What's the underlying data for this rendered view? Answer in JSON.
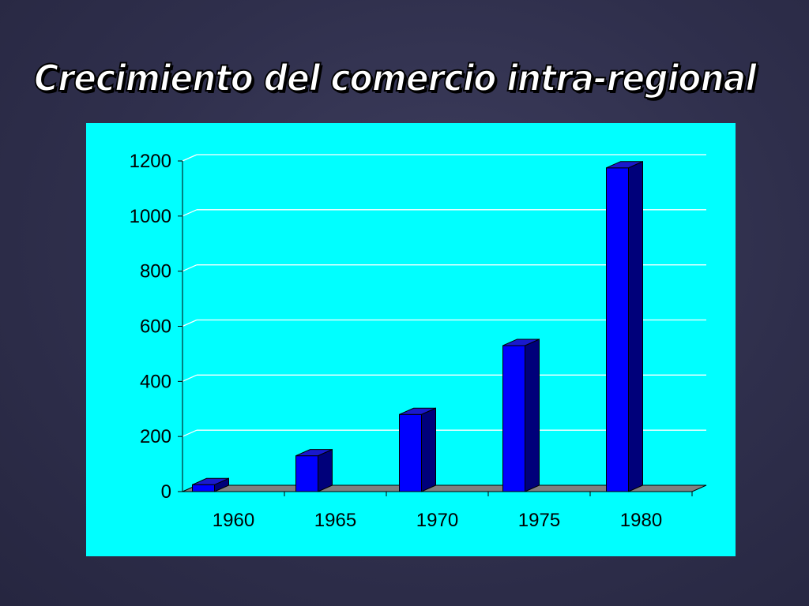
{
  "slide": {
    "title": "Crecimiento del comercio intra-regional"
  },
  "colors": {
    "background": "#2f2f4c",
    "panel": "#00ffff",
    "bar_front": "#0000ff",
    "bar_side": "#00007a",
    "bar_top": "#1a1acc",
    "floor": "#808080",
    "text": "#000000",
    "title_fill": "#ffffff"
  },
  "chart_data": {
    "type": "bar",
    "title": "",
    "xlabel": "",
    "ylabel": "",
    "categories": [
      "1960",
      "1965",
      "1970",
      "1975",
      "1980"
    ],
    "series": [
      {
        "values": [
          25,
          130,
          280,
          530,
          1175
        ]
      }
    ],
    "ylim": [
      0,
      1200
    ],
    "yticks": [
      0,
      200,
      400,
      600,
      800,
      1000,
      1200
    ],
    "grid": true,
    "legend": "none",
    "style": "3d-column"
  }
}
